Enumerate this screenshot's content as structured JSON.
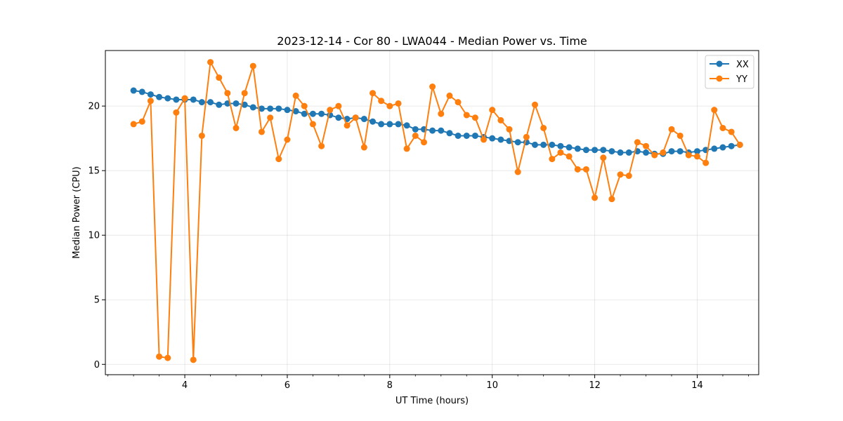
{
  "chart_data": {
    "type": "line",
    "title": "2023-12-14 - Cor 80 - LWA044 - Median Power vs. Time",
    "xlabel": "UT Time (hours)",
    "ylabel": "Median Power (CPU)",
    "xlim": [
      2.45,
      15.2
    ],
    "ylim": [
      -0.8,
      24.3
    ],
    "xticks": [
      4,
      6,
      8,
      10,
      12,
      14
    ],
    "xtick_labels": [
      "4",
      "6",
      "8",
      "10",
      "12",
      "14"
    ],
    "yticks": [
      0,
      5,
      10,
      15,
      20
    ],
    "ytick_labels": [
      "0",
      "5",
      "10",
      "15",
      "20"
    ],
    "grid": true,
    "legend_position": "top-right",
    "x": [
      3.0,
      3.167,
      3.333,
      3.5,
      3.667,
      3.833,
      4.0,
      4.167,
      4.333,
      4.5,
      4.667,
      4.833,
      5.0,
      5.167,
      5.333,
      5.5,
      5.667,
      5.833,
      6.0,
      6.167,
      6.333,
      6.5,
      6.667,
      6.833,
      7.0,
      7.167,
      7.333,
      7.5,
      7.667,
      7.833,
      8.0,
      8.167,
      8.333,
      8.5,
      8.667,
      8.833,
      9.0,
      9.167,
      9.333,
      9.5,
      9.667,
      9.833,
      10.0,
      10.167,
      10.333,
      10.5,
      10.667,
      10.833,
      11.0,
      11.167,
      11.333,
      11.5,
      11.667,
      11.833,
      12.0,
      12.167,
      12.333,
      12.5,
      12.667,
      12.833,
      13.0,
      13.167,
      13.333,
      13.5,
      13.667,
      13.833,
      14.0,
      14.167,
      14.333,
      14.5,
      14.667,
      14.833
    ],
    "series": [
      {
        "name": "XX",
        "color": "#1f77b4",
        "values": [
          21.2,
          21.1,
          20.9,
          20.7,
          20.6,
          20.5,
          20.5,
          20.5,
          20.3,
          20.3,
          20.1,
          20.2,
          20.2,
          20.1,
          19.9,
          19.8,
          19.8,
          19.8,
          19.7,
          19.6,
          19.4,
          19.4,
          19.4,
          19.3,
          19.1,
          19.0,
          19.1,
          19.0,
          18.8,
          18.6,
          18.6,
          18.6,
          18.5,
          18.2,
          18.2,
          18.1,
          18.1,
          17.9,
          17.7,
          17.7,
          17.7,
          17.6,
          17.5,
          17.4,
          17.3,
          17.2,
          17.2,
          17.0,
          17.0,
          17.0,
          16.9,
          16.8,
          16.7,
          16.6,
          16.6,
          16.6,
          16.5,
          16.4,
          16.4,
          16.5,
          16.4,
          16.3,
          16.3,
          16.5,
          16.5,
          16.4,
          16.5,
          16.6,
          16.7,
          16.8,
          16.9,
          17.0
        ]
      },
      {
        "name": "YY",
        "color": "#ff7f0e",
        "values": [
          18.6,
          18.8,
          20.4,
          0.6,
          0.5,
          19.5,
          20.6,
          0.35,
          17.7,
          23.4,
          22.2,
          21.0,
          18.3,
          21.0,
          23.1,
          18.0,
          19.1,
          15.9,
          17.4,
          20.8,
          20.0,
          18.6,
          16.9,
          19.7,
          20.0,
          18.5,
          19.1,
          16.8,
          21.0,
          20.4,
          20.0,
          20.2,
          16.7,
          17.7,
          17.2,
          21.5,
          19.4,
          20.8,
          20.3,
          19.3,
          19.1,
          17.4,
          19.7,
          18.9,
          18.2,
          14.9,
          17.6,
          20.1,
          18.3,
          15.9,
          16.4,
          16.1,
          15.1,
          15.1,
          12.9,
          16.0,
          12.8,
          14.7,
          14.6,
          17.2,
          16.9,
          16.2,
          16.4,
          18.2,
          17.7,
          16.2,
          16.1,
          15.6,
          19.7,
          18.3,
          18.0,
          17.0
        ]
      }
    ]
  }
}
